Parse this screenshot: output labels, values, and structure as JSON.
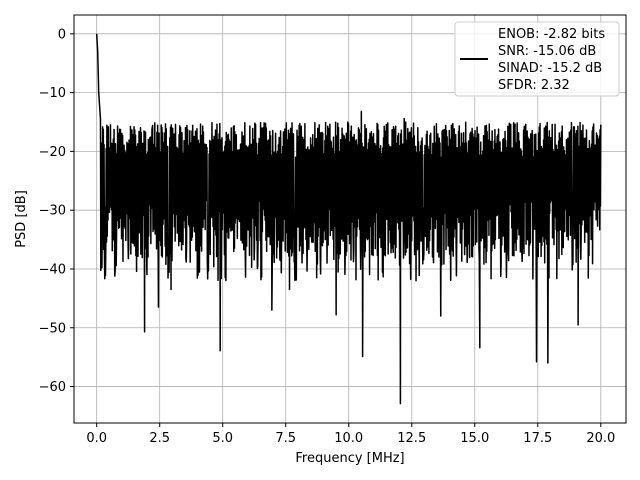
{
  "chart_data": {
    "type": "line",
    "title": "",
    "xlabel": "Frequency [MHz]",
    "ylabel": "PSD [dB]",
    "xlim": [
      -0.9,
      21.0
    ],
    "ylim": [
      -66.2,
      3.2
    ],
    "xticks": [
      0.0,
      2.5,
      5.0,
      7.5,
      10.0,
      12.5,
      15.0,
      17.5,
      20.0
    ],
    "xtick_labels": [
      "0.0",
      "2.5",
      "5.0",
      "7.5",
      "10.0",
      "12.5",
      "15.0",
      "17.5",
      "20.0"
    ],
    "yticks": [
      0,
      -10,
      -20,
      -30,
      -40,
      -50,
      -60
    ],
    "ytick_labels": [
      "0",
      "−10",
      "−20",
      "−30",
      "−40",
      "−50",
      "−60"
    ],
    "grid": true,
    "legend_position": "top-right",
    "legend_entries": [
      "ENOB: -2.82 bits",
      "SNR: -15.06 dB",
      "SINAD: -15.2 dB",
      "SFDR: 2.32"
    ],
    "series": [
      {
        "color": "#000000",
        "x_range": [
          0.0,
          20.0
        ],
        "noise_floor": {
          "mean": -26,
          "upper": -15,
          "lower": -38
        },
        "peak": [
          [
            0.0,
            0.0
          ],
          [
            0.04,
            -3.0
          ],
          [
            0.08,
            -10.0
          ],
          [
            0.15,
            -14.5
          ]
        ],
        "notable_points": [
          [
            1.9,
            -50.7
          ],
          [
            2.45,
            -46.5
          ],
          [
            2.95,
            -43.5
          ],
          [
            4.9,
            -53.9
          ],
          [
            6.95,
            -47.0
          ],
          [
            7.65,
            -43.5
          ],
          [
            9.5,
            -47.8
          ],
          [
            10.55,
            -54.9
          ],
          [
            12.05,
            -62.9
          ],
          [
            13.65,
            -48.0
          ],
          [
            15.2,
            -53.4
          ],
          [
            17.45,
            -55.8
          ],
          [
            17.9,
            -56.0
          ],
          [
            19.1,
            -49.5
          ],
          [
            2.2,
            -16.0
          ],
          [
            10.5,
            -13.2
          ],
          [
            12.2,
            -14.4
          ],
          [
            15.8,
            -16.3
          ]
        ]
      }
    ]
  }
}
